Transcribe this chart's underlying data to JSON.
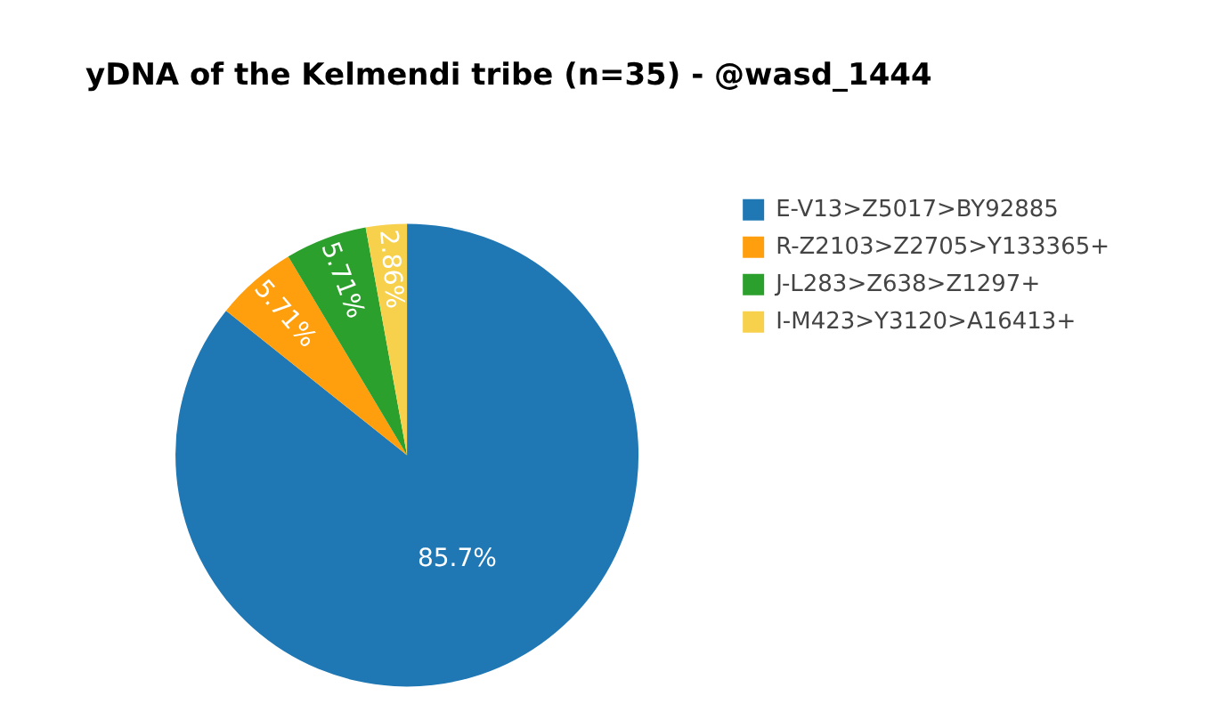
{
  "chart_data": {
    "type": "pie",
    "title": "yDNA of the Kelmendi tribe (n=35) - @wasd_1444",
    "categories": [
      "E-V13>Z5017>BY92885",
      "R-Z2103>Z2705>Y133365+",
      "J-L283>Z638>Z1297+",
      "I-M423>Y3120>A16413+"
    ],
    "values": [
      85.72,
      5.71,
      5.71,
      2.86
    ],
    "value_labels": [
      "85.7%",
      "5.71%",
      "5.71%",
      "2.86%"
    ],
    "colors": [
      "#1f77b4",
      "#ff9f0e",
      "#2ca02c",
      "#f7d14c"
    ],
    "legend": "top right"
  }
}
